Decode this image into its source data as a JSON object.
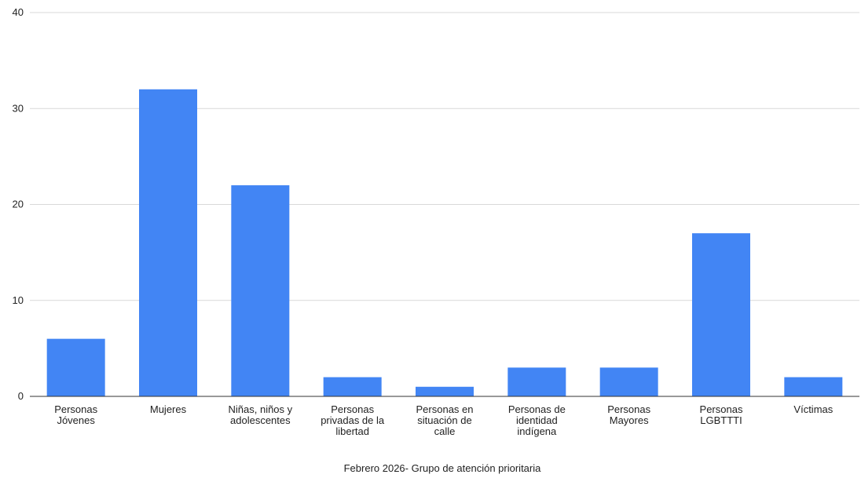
{
  "chart_data": {
    "type": "bar",
    "categories": [
      [
        "Personas",
        "Jóvenes"
      ],
      [
        "Mujeres"
      ],
      [
        "Niñas, niños y",
        "adolescentes"
      ],
      [
        "Personas",
        "privadas de la",
        "libertad"
      ],
      [
        "Personas en",
        "situación de",
        "calle"
      ],
      [
        "Personas de",
        "identidad",
        "indígena"
      ],
      [
        "Personas",
        "Mayores"
      ],
      [
        "Personas",
        "LGBTTTI"
      ],
      [
        "Víctimas"
      ]
    ],
    "values": [
      6,
      32,
      22,
      2,
      1,
      3,
      3,
      17,
      2
    ],
    "title": "",
    "xlabel": "Febrero 2026- Grupo de atención prioritaria",
    "ylabel": "",
    "ylim": [
      0,
      40
    ],
    "yticks": [
      "0",
      "10",
      "20",
      "30",
      "40"
    ],
    "grid": true,
    "bar_color": "#4285f4"
  }
}
